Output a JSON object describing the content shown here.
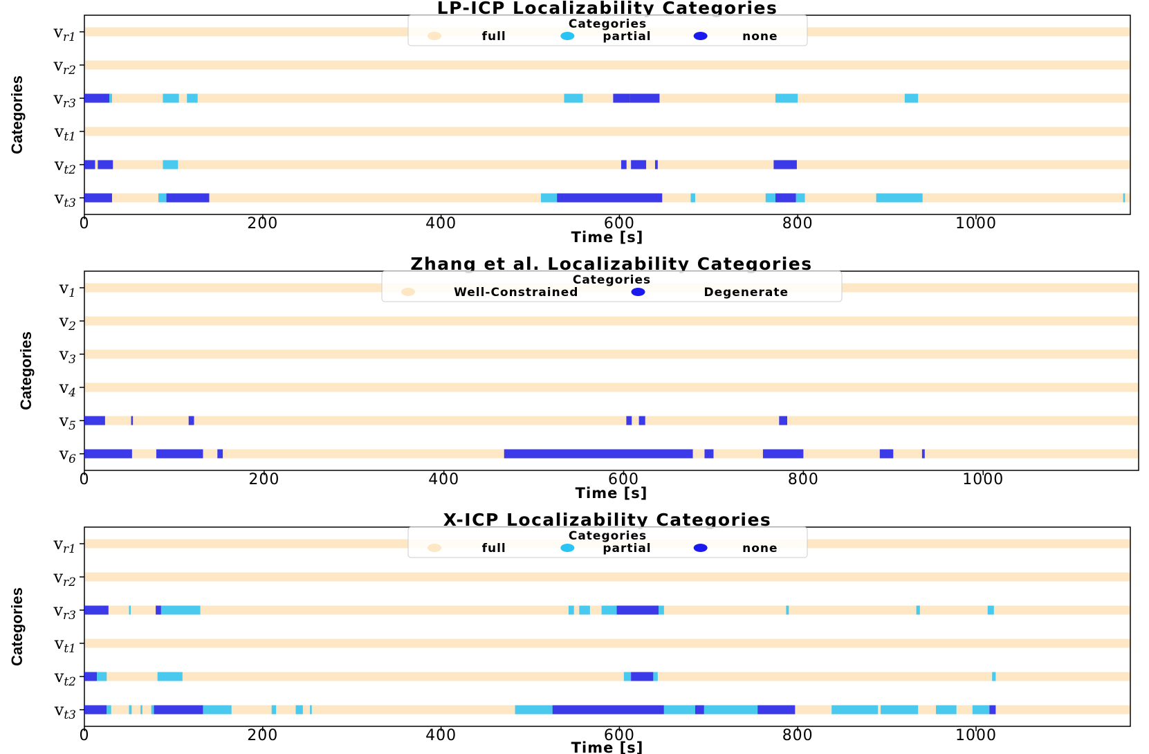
{
  "figure": {
    "ylabel": "Categories",
    "xlabel": "Time [s]"
  },
  "chart_data": [
    {
      "type": "timeline",
      "title": "LP-ICP Localizability Categories",
      "xlabel": "Time [s]",
      "ylabel": "Categories",
      "xlim": [
        0,
        1173
      ],
      "xticks": [
        0,
        200,
        400,
        600,
        800,
        1000
      ],
      "legend": {
        "title": "Categories",
        "placement": "top-center",
        "entries": [
          {
            "key": "full",
            "label": "full",
            "color": "#fde7c4"
          },
          {
            "key": "partial",
            "label": "partial",
            "color": "#29c3f5"
          },
          {
            "key": "none",
            "label": "none",
            "color": "#1a1aee"
          }
        ]
      },
      "rows": [
        {
          "label": "v",
          "sub": "r1",
          "default": "full",
          "segments": []
        },
        {
          "label": "v",
          "sub": "r2",
          "default": "full",
          "segments": []
        },
        {
          "label": "v",
          "sub": "r3",
          "default": "full",
          "segments": [
            {
              "start": 0,
              "end": 28,
              "cat": "none"
            },
            {
              "start": 28,
              "end": 31,
              "cat": "partial"
            },
            {
              "start": 88,
              "end": 106,
              "cat": "partial"
            },
            {
              "start": 115,
              "end": 127,
              "cat": "partial"
            },
            {
              "start": 538,
              "end": 559,
              "cat": "partial"
            },
            {
              "start": 593,
              "end": 612,
              "cat": "none"
            },
            {
              "start": 612,
              "end": 645,
              "cat": "none"
            },
            {
              "start": 775,
              "end": 800,
              "cat": "partial"
            },
            {
              "start": 920,
              "end": 935,
              "cat": "partial"
            }
          ]
        },
        {
          "label": "v",
          "sub": "t1",
          "default": "full",
          "segments": []
        },
        {
          "label": "v",
          "sub": "t2",
          "default": "full",
          "segments": [
            {
              "start": 0,
              "end": 12,
              "cat": "none"
            },
            {
              "start": 15,
              "end": 32,
              "cat": "none"
            },
            {
              "start": 88,
              "end": 105,
              "cat": "partial"
            },
            {
              "start": 602,
              "end": 608,
              "cat": "none"
            },
            {
              "start": 613,
              "end": 630,
              "cat": "none"
            },
            {
              "start": 640,
              "end": 643,
              "cat": "none"
            },
            {
              "start": 773,
              "end": 799,
              "cat": "none"
            }
          ]
        },
        {
          "label": "v",
          "sub": "t3",
          "default": "full",
          "segments": [
            {
              "start": 0,
              "end": 31,
              "cat": "none"
            },
            {
              "start": 83,
              "end": 92,
              "cat": "partial"
            },
            {
              "start": 92,
              "end": 140,
              "cat": "none"
            },
            {
              "start": 512,
              "end": 530,
              "cat": "partial"
            },
            {
              "start": 530,
              "end": 648,
              "cat": "none"
            },
            {
              "start": 680,
              "end": 685,
              "cat": "partial"
            },
            {
              "start": 764,
              "end": 775,
              "cat": "partial"
            },
            {
              "start": 775,
              "end": 798,
              "cat": "none"
            },
            {
              "start": 798,
              "end": 808,
              "cat": "partial"
            },
            {
              "start": 888,
              "end": 940,
              "cat": "partial"
            },
            {
              "start": 1165,
              "end": 1167,
              "cat": "partial"
            }
          ]
        }
      ]
    },
    {
      "type": "timeline",
      "title": "Zhang et al. Localizability Categories",
      "xlabel": "Time [s]",
      "ylabel": "Categories",
      "xlim": [
        0,
        1173
      ],
      "xticks": [
        0,
        200,
        400,
        600,
        800,
        1000
      ],
      "legend": {
        "title": "Categories",
        "placement": "top-center",
        "entries": [
          {
            "key": "well",
            "label": "Well-Constrained",
            "color": "#fde7c4"
          },
          {
            "key": "degenerate",
            "label": "Degenerate",
            "color": "#1a1aee"
          }
        ]
      },
      "rows": [
        {
          "label": "v",
          "sub": "1",
          "default": "well",
          "segments": []
        },
        {
          "label": "v",
          "sub": "2",
          "default": "well",
          "segments": []
        },
        {
          "label": "v",
          "sub": "3",
          "default": "well",
          "segments": []
        },
        {
          "label": "v",
          "sub": "4",
          "default": "well",
          "segments": []
        },
        {
          "label": "v",
          "sub": "5",
          "default": "well",
          "segments": [
            {
              "start": 0,
              "end": 23,
              "cat": "degenerate"
            },
            {
              "start": 52,
              "end": 54,
              "cat": "degenerate"
            },
            {
              "start": 116,
              "end": 122,
              "cat": "degenerate"
            },
            {
              "start": 603,
              "end": 609,
              "cat": "degenerate"
            },
            {
              "start": 617,
              "end": 624,
              "cat": "degenerate"
            },
            {
              "start": 773,
              "end": 782,
              "cat": "degenerate"
            }
          ]
        },
        {
          "label": "v",
          "sub": "6",
          "default": "well",
          "segments": [
            {
              "start": 0,
              "end": 53,
              "cat": "degenerate"
            },
            {
              "start": 80,
              "end": 132,
              "cat": "degenerate"
            },
            {
              "start": 148,
              "end": 154,
              "cat": "degenerate"
            },
            {
              "start": 467,
              "end": 508,
              "cat": "degenerate"
            },
            {
              "start": 508,
              "end": 677,
              "cat": "degenerate"
            },
            {
              "start": 690,
              "end": 700,
              "cat": "degenerate"
            },
            {
              "start": 755,
              "end": 800,
              "cat": "degenerate"
            },
            {
              "start": 885,
              "end": 900,
              "cat": "degenerate"
            },
            {
              "start": 932,
              "end": 935,
              "cat": "degenerate"
            }
          ]
        }
      ]
    },
    {
      "type": "timeline",
      "title": "X-ICP Localizability Categories",
      "xlabel": "Time [s]",
      "ylabel": "Categories",
      "xlim": [
        0,
        1173
      ],
      "xticks": [
        0,
        200,
        400,
        600,
        800,
        1000
      ],
      "legend": {
        "title": "Categories",
        "placement": "top-center",
        "entries": [
          {
            "key": "full",
            "label": "full",
            "color": "#fde7c4"
          },
          {
            "key": "partial",
            "label": "partial",
            "color": "#29c3f5"
          },
          {
            "key": "none",
            "label": "none",
            "color": "#1a1aee"
          }
        ]
      },
      "rows": [
        {
          "label": "v",
          "sub": "r1",
          "default": "full",
          "segments": []
        },
        {
          "label": "v",
          "sub": "r2",
          "default": "full",
          "segments": []
        },
        {
          "label": "v",
          "sub": "r3",
          "default": "full",
          "segments": [
            {
              "start": 0,
              "end": 27,
              "cat": "none"
            },
            {
              "start": 50,
              "end": 52,
              "cat": "partial"
            },
            {
              "start": 80,
              "end": 86,
              "cat": "none"
            },
            {
              "start": 86,
              "end": 130,
              "cat": "partial"
            },
            {
              "start": 543,
              "end": 549,
              "cat": "partial"
            },
            {
              "start": 555,
              "end": 567,
              "cat": "partial"
            },
            {
              "start": 580,
              "end": 597,
              "cat": "partial"
            },
            {
              "start": 597,
              "end": 644,
              "cat": "none"
            },
            {
              "start": 644,
              "end": 650,
              "cat": "partial"
            },
            {
              "start": 787,
              "end": 790,
              "cat": "partial"
            },
            {
              "start": 933,
              "end": 937,
              "cat": "partial"
            },
            {
              "start": 1013,
              "end": 1020,
              "cat": "partial"
            }
          ]
        },
        {
          "label": "v",
          "sub": "t1",
          "default": "full",
          "segments": []
        },
        {
          "label": "v",
          "sub": "t2",
          "default": "full",
          "segments": [
            {
              "start": 0,
              "end": 14,
              "cat": "none"
            },
            {
              "start": 14,
              "end": 25,
              "cat": "partial"
            },
            {
              "start": 82,
              "end": 110,
              "cat": "partial"
            },
            {
              "start": 605,
              "end": 613,
              "cat": "partial"
            },
            {
              "start": 613,
              "end": 638,
              "cat": "none"
            },
            {
              "start": 638,
              "end": 643,
              "cat": "partial"
            },
            {
              "start": 1018,
              "end": 1022,
              "cat": "partial"
            }
          ]
        },
        {
          "label": "v",
          "sub": "t3",
          "default": "full",
          "segments": [
            {
              "start": 0,
              "end": 25,
              "cat": "none"
            },
            {
              "start": 25,
              "end": 30,
              "cat": "partial"
            },
            {
              "start": 50,
              "end": 53,
              "cat": "partial"
            },
            {
              "start": 63,
              "end": 65,
              "cat": "partial"
            },
            {
              "start": 75,
              "end": 78,
              "cat": "partial"
            },
            {
              "start": 78,
              "end": 133,
              "cat": "none"
            },
            {
              "start": 133,
              "end": 165,
              "cat": "partial"
            },
            {
              "start": 210,
              "end": 215,
              "cat": "partial"
            },
            {
              "start": 237,
              "end": 245,
              "cat": "partial"
            },
            {
              "start": 253,
              "end": 255,
              "cat": "partial"
            },
            {
              "start": 483,
              "end": 525,
              "cat": "partial"
            },
            {
              "start": 525,
              "end": 650,
              "cat": "none"
            },
            {
              "start": 650,
              "end": 685,
              "cat": "partial"
            },
            {
              "start": 685,
              "end": 695,
              "cat": "none"
            },
            {
              "start": 695,
              "end": 755,
              "cat": "partial"
            },
            {
              "start": 755,
              "end": 797,
              "cat": "none"
            },
            {
              "start": 838,
              "end": 890,
              "cat": "partial"
            },
            {
              "start": 893,
              "end": 935,
              "cat": "partial"
            },
            {
              "start": 955,
              "end": 978,
              "cat": "partial"
            },
            {
              "start": 996,
              "end": 1015,
              "cat": "partial"
            },
            {
              "start": 1015,
              "end": 1022,
              "cat": "none"
            }
          ]
        }
      ]
    }
  ]
}
